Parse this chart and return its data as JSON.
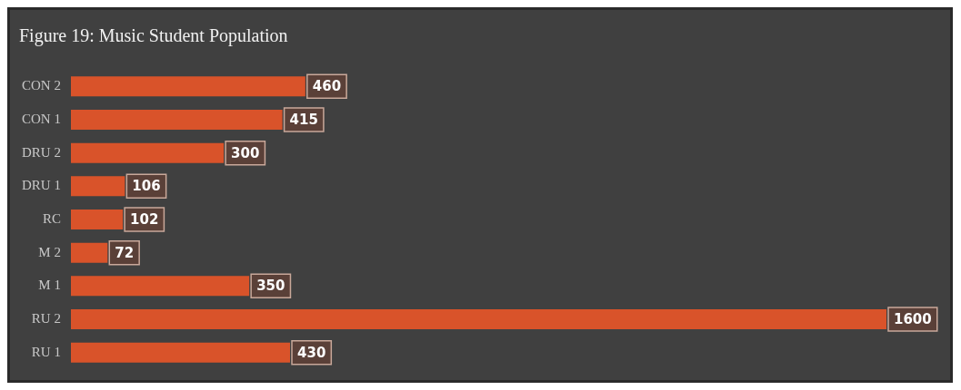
{
  "chart_data": {
    "type": "bar",
    "orientation": "horizontal",
    "title": "Figure 19: Music Student Population",
    "categories": [
      "CON 2",
      "CON 1",
      "DRU 2",
      "DRU 1",
      "RC",
      "M 2",
      "M 1",
      "RU 2",
      "RU 1"
    ],
    "values": [
      460,
      415,
      300,
      106,
      102,
      72,
      350,
      1600,
      430
    ],
    "color": "#d9532a",
    "data_labels": true,
    "legend": false
  }
}
